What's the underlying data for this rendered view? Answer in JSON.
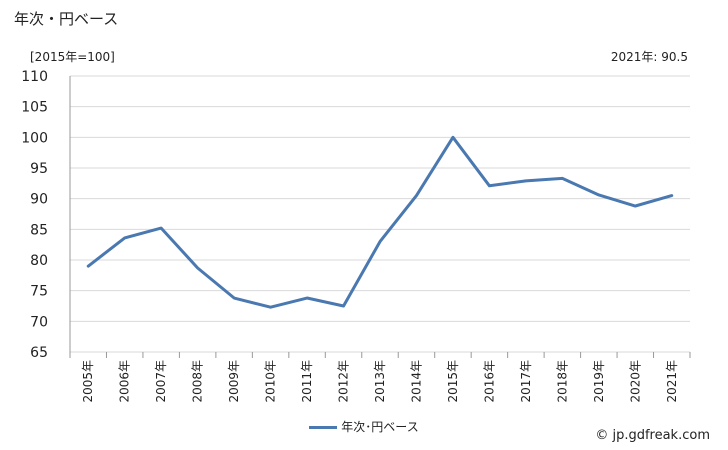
{
  "header": {
    "title": "年次・円ベース",
    "unit_note": "[2015年=100]",
    "latest_value": "2021年: 90.5"
  },
  "legend": {
    "label": "年次･円ベース"
  },
  "credit": {
    "text": "© jp.gdfreak.com"
  },
  "colors": {
    "series": "#4a78b0",
    "grid": "#d9d9d9",
    "axis": "#999999"
  },
  "chart_data": {
    "type": "line",
    "x": [
      "2005年",
      "2006年",
      "2007年",
      "2008年",
      "2009年",
      "2010年",
      "2011年",
      "2012年",
      "2013年",
      "2014年",
      "2015年",
      "2016年",
      "2017年",
      "2018年",
      "2019年",
      "2020年",
      "2021年"
    ],
    "series": [
      {
        "name": "年次･円ベース",
        "values": [
          79.0,
          83.6,
          85.2,
          78.7,
          73.8,
          72.3,
          73.8,
          72.5,
          83.0,
          90.5,
          100.0,
          92.1,
          92.9,
          93.3,
          90.6,
          88.8,
          90.5
        ]
      }
    ],
    "ylim": [
      65,
      110
    ],
    "yticks": [
      65,
      70,
      75,
      80,
      85,
      90,
      95,
      100,
      105,
      110
    ],
    "grid": true,
    "legend_position": "bottom-center"
  }
}
